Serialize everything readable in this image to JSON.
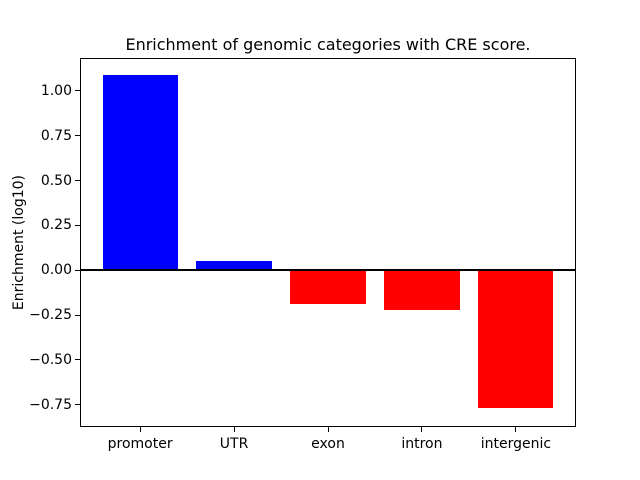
{
  "chart_data": {
    "type": "bar",
    "title": "Enrichment of genomic categories with CRE score.",
    "xlabel": "",
    "ylabel": "Enrichment (log10)",
    "categories": [
      "promoter",
      "UTR",
      "exon",
      "intron",
      "intergenic"
    ],
    "values": [
      1.09,
      0.05,
      -0.19,
      -0.22,
      -0.77
    ],
    "bar_colors": [
      "#0000ff",
      "#0000ff",
      "#ff0000",
      "#ff0000",
      "#ff0000"
    ],
    "positive_color": "#0000ff",
    "negative_color": "#ff0000",
    "axis_color": "#000000",
    "background_color": "#ffffff",
    "yticks": [
      1.0,
      0.75,
      0.5,
      0.25,
      0.0,
      -0.25,
      -0.5,
      -0.75
    ],
    "ytick_labels": [
      "1.00",
      "0.75",
      "0.50",
      "0.25",
      "0.00",
      "−0.25",
      "−0.50",
      "−0.75"
    ],
    "ylim": [
      -0.875,
      1.185
    ],
    "bar_width_fraction": 0.8,
    "x_margin": 0.64,
    "x_span": 5.28,
    "grid": false,
    "legend": null,
    "zero_line": true
  }
}
